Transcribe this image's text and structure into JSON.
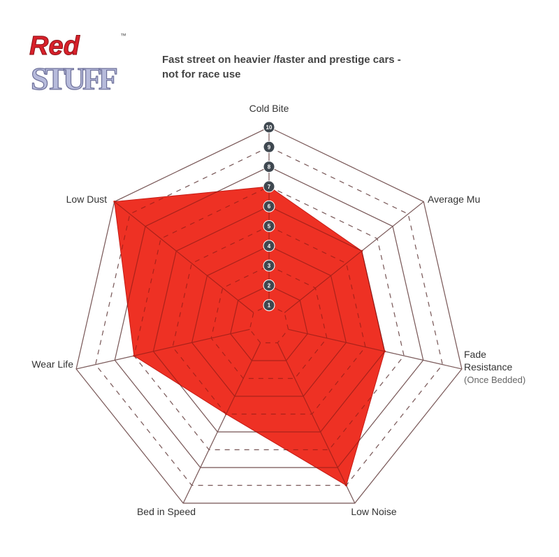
{
  "logo": {
    "line1": "Red",
    "line2": "STUFF",
    "tm": "™"
  },
  "subtitle": {
    "line1": "Fast street on heavier /faster and prestige cars -",
    "line2": "not for race use"
  },
  "chart_data": {
    "type": "radar",
    "title": "",
    "axes": [
      "Cold Bite",
      "Average Mu",
      "Fade Resistance",
      "Low Noise",
      "Bed in Speed",
      "Wear Life",
      "Low Dust"
    ],
    "axis_note": {
      "Fade Resistance": "(Once Bedded)"
    },
    "scale": {
      "min": 0,
      "max": 10,
      "ticks": [
        1,
        2,
        3,
        4,
        5,
        6,
        7,
        8,
        9,
        10
      ]
    },
    "series": [
      {
        "values": [
          7,
          6,
          6,
          9,
          5,
          7,
          10
        ],
        "color": "#ee3124"
      }
    ],
    "grid": true
  }
}
